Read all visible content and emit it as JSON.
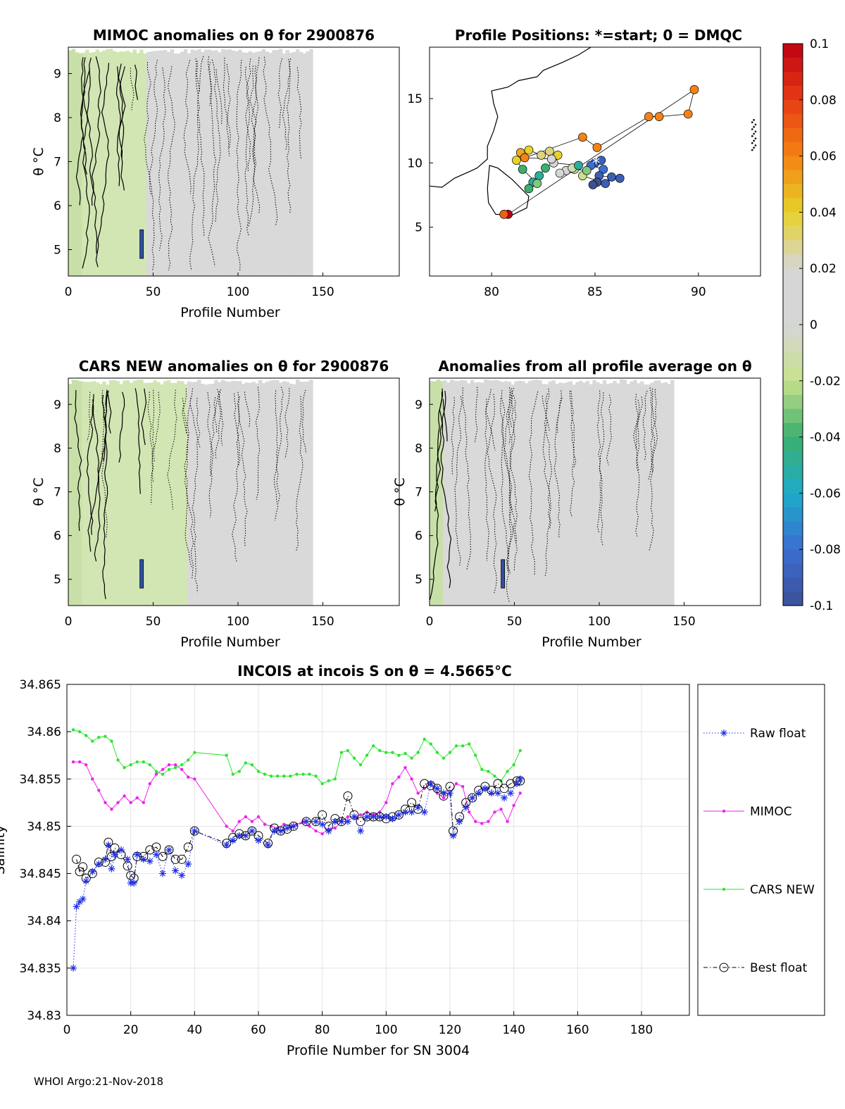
{
  "footer": "WHOI Argo:21-Nov-2018",
  "colors": {
    "raw": "#1f2fe6",
    "mimoc": "#ee22ee",
    "cars": "#2ee52e",
    "best": "#000000",
    "anomaly_bg": "#d9d9d9",
    "anomaly_green": "#d2e6b4"
  },
  "colorbar": {
    "ticks": [
      "0.1",
      "0.08",
      "0.06",
      "0.04",
      "0.02",
      "0",
      "-0.02",
      "-0.04",
      "-0.06",
      "-0.08",
      "-0.1"
    ],
    "range": [
      -0.1,
      0.1
    ]
  },
  "chart_data": [
    {
      "type": "heatmap",
      "title": "MIMOC anomalies on θ  for 2900876",
      "xlabel": "Profile Number",
      "ylabel": "θ °C",
      "xlim": [
        0,
        195
      ],
      "ylim": [
        4.4,
        9.6
      ],
      "xticks": [
        "0",
        "50",
        "100",
        "150"
      ],
      "yticks": [
        "5",
        "6",
        "7",
        "8",
        "9"
      ]
    },
    {
      "type": "scatter",
      "title": "Profile Positions: *=start; 0 = DMQC",
      "xlim": [
        77,
        93
      ],
      "ylim": [
        1.2,
        19
      ],
      "xticks": [
        "80",
        "85",
        "90"
      ],
      "yticks": [
        "5",
        "10",
        "15"
      ],
      "positions": [
        [
          85.0,
          10.0
        ],
        [
          85.3,
          10.2
        ],
        [
          84.8,
          9.8
        ],
        [
          85.4,
          9.5
        ],
        [
          85.2,
          9.0
        ],
        [
          85.8,
          8.9
        ],
        [
          86.2,
          8.8
        ],
        [
          85.1,
          8.5
        ],
        [
          84.9,
          8.3
        ],
        [
          85.5,
          8.4
        ],
        [
          84.4,
          9.0
        ],
        [
          84.6,
          9.4
        ],
        [
          84.0,
          9.5
        ],
        [
          83.6,
          9.4
        ],
        [
          83.3,
          9.2
        ],
        [
          83.9,
          9.6
        ],
        [
          84.2,
          9.8
        ],
        [
          83.0,
          10.0
        ],
        [
          82.6,
          9.6
        ],
        [
          82.3,
          9.0
        ],
        [
          82.0,
          8.5
        ],
        [
          81.8,
          8.0
        ],
        [
          82.2,
          8.4
        ],
        [
          81.5,
          9.5
        ],
        [
          81.2,
          10.2
        ],
        [
          81.4,
          10.8
        ],
        [
          81.8,
          11.0
        ],
        [
          82.4,
          10.6
        ],
        [
          82.8,
          10.9
        ],
        [
          83.2,
          10.6
        ],
        [
          82.9,
          10.3
        ],
        [
          81.6,
          10.4
        ],
        [
          84.4,
          12.0
        ],
        [
          85.1,
          11.2
        ],
        [
          87.6,
          13.6
        ],
        [
          88.1,
          13.6
        ],
        [
          89.5,
          13.8
        ],
        [
          89.8,
          15.7
        ],
        [
          80.8,
          6.0
        ],
        [
          80.6,
          6.0
        ]
      ],
      "position_values": [
        -0.09,
        -0.09,
        -0.08,
        -0.08,
        -0.09,
        -0.09,
        -0.09,
        -0.1,
        -0.1,
        -0.09,
        -0.02,
        -0.03,
        -0.02,
        0.0,
        0.02,
        -0.01,
        -0.05,
        0.02,
        -0.04,
        -0.05,
        -0.05,
        -0.04,
        -0.03,
        -0.04,
        0.04,
        0.05,
        0.04,
        0.03,
        0.03,
        0.04,
        0.02,
        0.06,
        0.06,
        0.06,
        0.06,
        0.06,
        0.06,
        0.06,
        0.1,
        0.07
      ]
    },
    {
      "type": "heatmap",
      "title": "CARS NEW anomalies on θ for 2900876",
      "xlabel": "Profile Number",
      "ylabel": "θ °C",
      "xlim": [
        0,
        195
      ],
      "ylim": [
        4.4,
        9.6
      ],
      "xticks": [
        "0",
        "50",
        "100",
        "150"
      ],
      "yticks": [
        "5",
        "6",
        "7",
        "8",
        "9"
      ]
    },
    {
      "type": "heatmap",
      "title": "Anomalies from all profile average on θ",
      "xlabel": "Profile Number",
      "ylabel": "θ °C",
      "xlim": [
        0,
        195
      ],
      "ylim": [
        4.4,
        9.6
      ],
      "xticks": [
        "0",
        "50",
        "100",
        "150"
      ],
      "yticks": [
        "5",
        "6",
        "7",
        "8",
        "9"
      ]
    },
    {
      "type": "line",
      "title": "INCOIS at incois S on θ = 4.5665°C",
      "xlabel": "Profile Number for SN 3004",
      "ylabel": "Salinity",
      "xlim": [
        0,
        195
      ],
      "ylim": [
        34.83,
        34.865
      ],
      "xticks": [
        "0",
        "20",
        "40",
        "60",
        "80",
        "100",
        "120",
        "140",
        "160",
        "180"
      ],
      "yticks": [
        "34.83",
        "34.835",
        "34.84",
        "34.845",
        "34.85",
        "34.855",
        "34.86",
        "34.865"
      ],
      "series": [
        {
          "name": "Raw float",
          "x": [
            2,
            3,
            4,
            5,
            6,
            8,
            10,
            12,
            13,
            14,
            15,
            17,
            19,
            20,
            21,
            22,
            24,
            26,
            28,
            30,
            32,
            34,
            36,
            38,
            40,
            50,
            52,
            54,
            56,
            58,
            60,
            63,
            65,
            67,
            69,
            71,
            75,
            78,
            80,
            82,
            84,
            86,
            88,
            90,
            92,
            94,
            96,
            98,
            100,
            102,
            104,
            106,
            108,
            110,
            112,
            114,
            116,
            118,
            120,
            121,
            123,
            125,
            127,
            129,
            131,
            133,
            135,
            137,
            139,
            141,
            142
          ],
          "y": [
            34.835,
            34.8415,
            34.842,
            34.8423,
            34.8442,
            34.8452,
            34.846,
            34.8465,
            34.848,
            34.8455,
            34.847,
            34.8475,
            34.8465,
            34.844,
            34.844,
            34.847,
            34.8465,
            34.8463,
            34.847,
            34.845,
            34.8475,
            34.8453,
            34.8448,
            34.846,
            34.8495,
            34.848,
            34.8485,
            34.849,
            34.849,
            34.8495,
            34.8485,
            34.848,
            34.8495,
            34.8495,
            34.8498,
            34.85,
            34.8505,
            34.8505,
            34.8502,
            34.8495,
            34.8505,
            34.8505,
            34.8505,
            34.851,
            34.8495,
            34.851,
            34.851,
            34.851,
            34.851,
            34.8508,
            34.8512,
            34.8515,
            34.8515,
            34.852,
            34.8515,
            34.8545,
            34.854,
            34.8535,
            34.8535,
            34.849,
            34.8505,
            34.852,
            34.853,
            34.8535,
            34.854,
            34.8535,
            34.8535,
            34.853,
            34.8535,
            34.8545,
            34.855
          ]
        },
        {
          "name": "MIMOC",
          "x": [
            2,
            4,
            6,
            8,
            10,
            12,
            14,
            16,
            18,
            20,
            22,
            24,
            26,
            28,
            30,
            32,
            34,
            36,
            38,
            40,
            50,
            52,
            54,
            56,
            58,
            60,
            62,
            64,
            66,
            68,
            70,
            72,
            74,
            76,
            78,
            80,
            82,
            84,
            86,
            88,
            90,
            92,
            94,
            96,
            98,
            100,
            102,
            104,
            106,
            108,
            110,
            112,
            114,
            116,
            118,
            120,
            122,
            124,
            126,
            128,
            130,
            132,
            134,
            136,
            138,
            140,
            142
          ],
          "y": [
            34.8568,
            34.8568,
            34.8565,
            34.855,
            34.8538,
            34.8525,
            34.8518,
            34.8525,
            34.8532,
            34.8525,
            34.853,
            34.8525,
            34.8545,
            34.8555,
            34.856,
            34.8565,
            34.8565,
            34.856,
            34.8552,
            34.855,
            34.85,
            34.8495,
            34.8505,
            34.851,
            34.8505,
            34.851,
            34.8502,
            34.85,
            34.8498,
            34.8502,
            34.85,
            34.8502,
            34.8505,
            34.85,
            34.8495,
            34.8492,
            34.8497,
            34.8498,
            34.8505,
            34.851,
            34.851,
            34.8512,
            34.8515,
            34.8512,
            34.8515,
            34.8525,
            34.8545,
            34.8552,
            34.8562,
            34.855,
            34.8535,
            34.854,
            34.8545,
            34.8535,
            34.853,
            34.8535,
            34.8545,
            34.8542,
            34.8515,
            34.8505,
            34.8503,
            34.8505,
            34.8515,
            34.8518,
            34.8505,
            34.8522,
            34.8535
          ]
        },
        {
          "name": "CARS NEW",
          "x": [
            2,
            4,
            6,
            8,
            10,
            12,
            14,
            16,
            18,
            20,
            22,
            24,
            26,
            28,
            30,
            32,
            34,
            36,
            38,
            40,
            50,
            52,
            54,
            56,
            58,
            60,
            62,
            64,
            66,
            68,
            70,
            72,
            74,
            76,
            78,
            80,
            82,
            84,
            86,
            88,
            90,
            92,
            94,
            96,
            98,
            100,
            102,
            104,
            106,
            108,
            110,
            112,
            114,
            116,
            118,
            120,
            122,
            124,
            126,
            128,
            130,
            132,
            134,
            136,
            138,
            140,
            142
          ],
          "y": [
            34.8602,
            34.86,
            34.8596,
            34.859,
            34.8594,
            34.8595,
            34.859,
            34.857,
            34.8562,
            34.8565,
            34.8568,
            34.8568,
            34.8565,
            34.8558,
            34.8555,
            34.856,
            34.8562,
            34.8565,
            34.857,
            34.8578,
            34.8575,
            34.8555,
            34.8558,
            34.8567,
            34.8565,
            34.8558,
            34.8555,
            34.8553,
            34.8553,
            34.8553,
            34.8553,
            34.8555,
            34.8555,
            34.8555,
            34.8553,
            34.8545,
            34.8548,
            34.855,
            34.8578,
            34.858,
            34.8572,
            34.8565,
            34.8575,
            34.8585,
            34.858,
            34.8578,
            34.8578,
            34.8575,
            34.8577,
            34.8572,
            34.8578,
            34.8592,
            34.8587,
            34.8578,
            34.8572,
            34.8578,
            34.8585,
            34.8585,
            34.8587,
            34.8575,
            34.856,
            34.8558,
            34.8553,
            34.8548,
            34.8558,
            34.8565,
            34.858
          ]
        },
        {
          "name": "Best float",
          "x": [
            3,
            4,
            5,
            6,
            8,
            10,
            12,
            13,
            14,
            15,
            17,
            19,
            20,
            21,
            22,
            24,
            26,
            28,
            30,
            32,
            34,
            36,
            38,
            40,
            50,
            52,
            54,
            56,
            58,
            60,
            63,
            65,
            67,
            69,
            71,
            75,
            78,
            80,
            82,
            84,
            86,
            88,
            90,
            92,
            94,
            96,
            98,
            100,
            102,
            104,
            106,
            108,
            110,
            112,
            114,
            116,
            118,
            120,
            121,
            123,
            125,
            127,
            129,
            131,
            133,
            135,
            137,
            139,
            141,
            142
          ],
          "y": [
            34.8465,
            34.8452,
            34.8457,
            34.8445,
            34.845,
            34.8462,
            34.8462,
            34.8483,
            34.8468,
            34.8477,
            34.847,
            34.8458,
            34.8448,
            34.8445,
            34.8468,
            34.8468,
            34.8475,
            34.8478,
            34.8468,
            34.8475,
            34.8465,
            34.8465,
            34.8478,
            34.8495,
            34.8482,
            34.8488,
            34.8492,
            34.849,
            34.8495,
            34.849,
            34.8482,
            34.8498,
            34.8495,
            34.8497,
            34.85,
            34.8505,
            34.8505,
            34.8512,
            34.85,
            34.8508,
            34.8505,
            34.8532,
            34.8512,
            34.8505,
            34.851,
            34.851,
            34.851,
            34.8508,
            34.851,
            34.8512,
            34.8518,
            34.8525,
            34.8518,
            34.8545,
            34.8543,
            34.854,
            34.8532,
            34.8542,
            34.8495,
            34.851,
            34.8525,
            34.853,
            34.8538,
            34.8542,
            34.8538,
            34.8545,
            34.854,
            34.8545,
            34.8548,
            34.8548
          ]
        }
      ]
    }
  ]
}
